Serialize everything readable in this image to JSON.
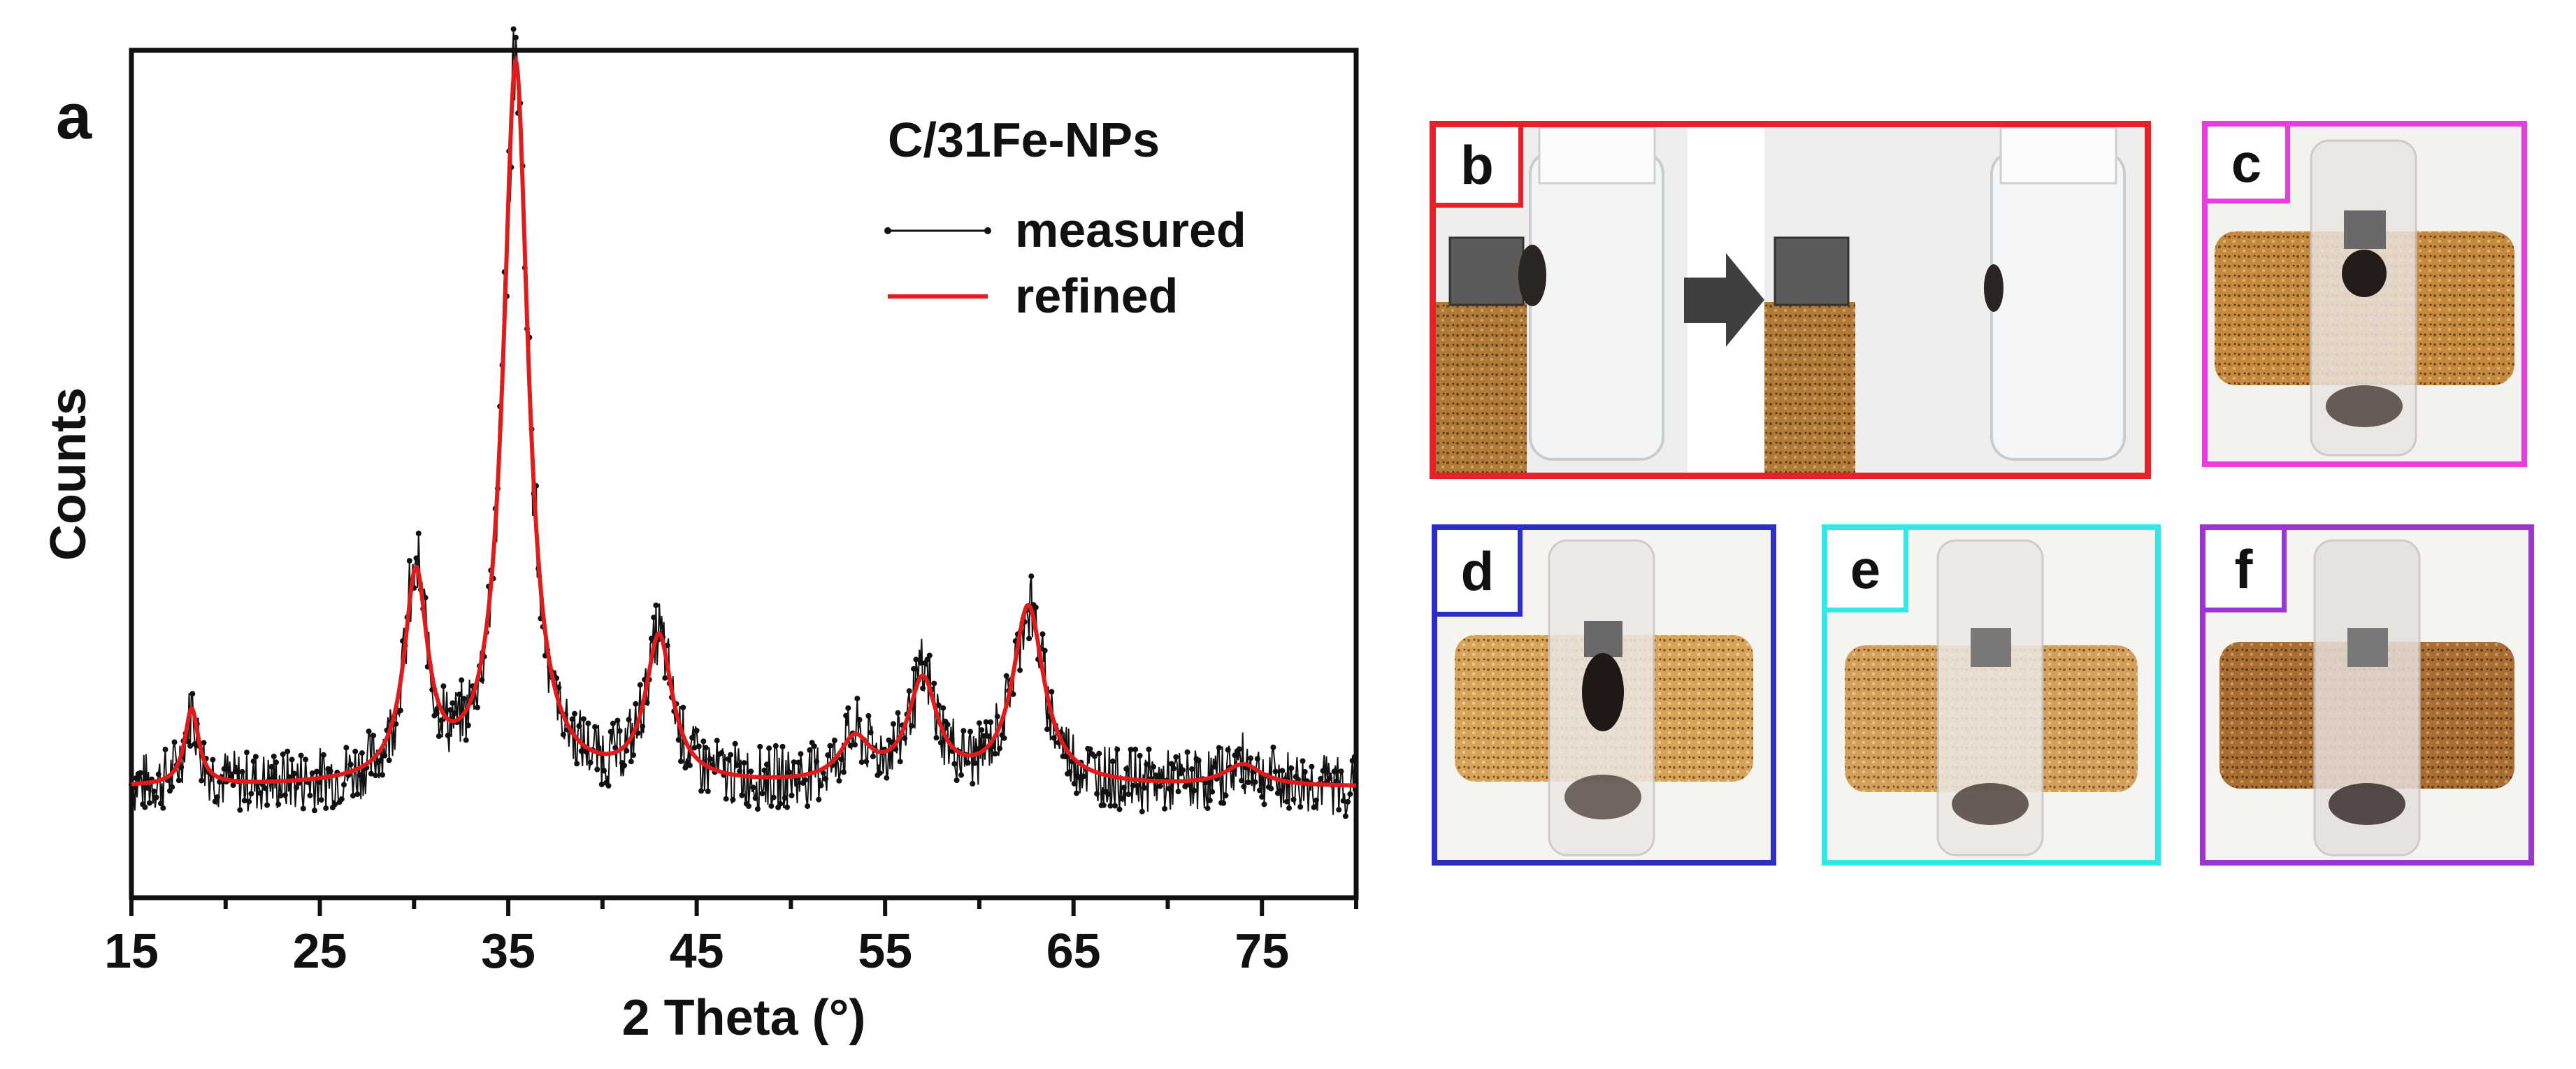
{
  "chart_data": {
    "type": "line",
    "panel_label": "a",
    "title": "C/31Fe-NPs",
    "xlabel": "2 Theta (°)",
    "ylabel": "Counts",
    "xlim": [
      15,
      80
    ],
    "ylim": [
      0,
      1.0
    ],
    "xticks": [
      15,
      25,
      35,
      45,
      55,
      65,
      75
    ],
    "grid": false,
    "legend_position": "top-right",
    "series": [
      {
        "name": "measured",
        "color": "#111111",
        "style": "points-with-noise"
      },
      {
        "name": "refined",
        "color": "#e01b1b",
        "style": "line"
      }
    ],
    "baseline": 0.13,
    "peaks": [
      {
        "x": 18.2,
        "height": 0.09,
        "width": 0.45
      },
      {
        "x": 30.1,
        "height": 0.24,
        "width": 0.75
      },
      {
        "x": 35.4,
        "height": 0.85,
        "width": 0.8
      },
      {
        "x": 43.0,
        "height": 0.17,
        "width": 0.85
      },
      {
        "x": 53.4,
        "height": 0.05,
        "width": 1.0
      },
      {
        "x": 57.0,
        "height": 0.12,
        "width": 0.95
      },
      {
        "x": 62.6,
        "height": 0.21,
        "width": 1.0
      },
      {
        "x": 74.0,
        "height": 0.025,
        "width": 1.2
      }
    ]
  },
  "panels": [
    {
      "label": "b",
      "color": "#e8202a",
      "description_icon": "magnet-vial-arrow-photo"
    },
    {
      "label": "c",
      "color": "#e83ee0",
      "description_icon": "vial-cork-photo"
    },
    {
      "label": "d",
      "color": "#2b2ec9",
      "description_icon": "vial-cork-photo"
    },
    {
      "label": "e",
      "color": "#35e6e6",
      "description_icon": "vial-cork-photo"
    },
    {
      "label": "f",
      "color": "#9c34d6",
      "description_icon": "vial-cork-photo"
    }
  ]
}
